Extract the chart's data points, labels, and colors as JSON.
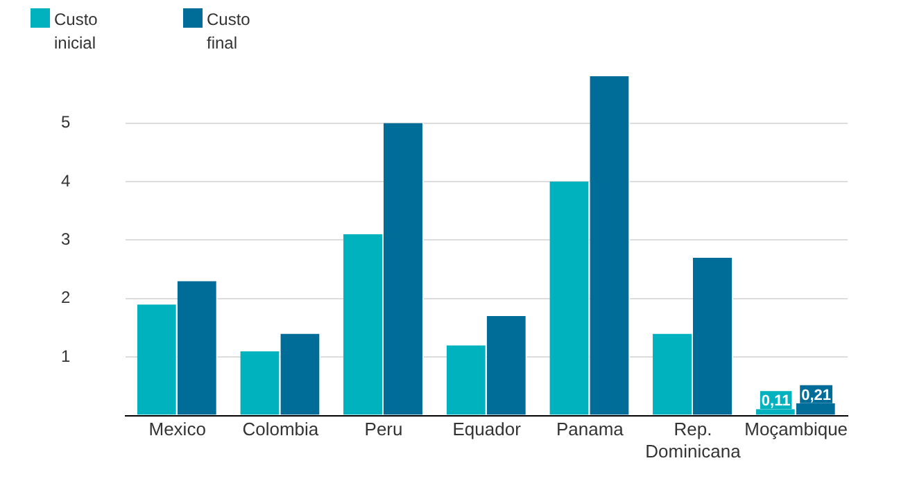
{
  "chart_data": {
    "type": "bar",
    "categories": [
      "Mexico",
      "Colombia",
      "Peru",
      "Equador",
      "Panama",
      "Rep. Dominicana",
      "Moçambique"
    ],
    "series": [
      {
        "name": "Custo inicial",
        "color": "#00b2bd",
        "values": [
          1.9,
          1.1,
          3.1,
          1.2,
          4.0,
          1.4,
          0.11
        ],
        "value_labels": [
          null,
          null,
          null,
          null,
          null,
          null,
          "0,11"
        ]
      },
      {
        "name": "Custo final",
        "color": "#006c98",
        "values": [
          2.3,
          1.4,
          5.0,
          1.7,
          5.8,
          2.7,
          0.21
        ],
        "value_labels": [
          null,
          null,
          null,
          null,
          null,
          null,
          "0,21"
        ]
      }
    ],
    "ylim": [
      0,
      5.8
    ],
    "yticks": [
      {
        "value": 0,
        "label": null
      },
      1,
      2,
      3,
      4,
      5
    ],
    "grid": "y",
    "legend": "top left"
  }
}
